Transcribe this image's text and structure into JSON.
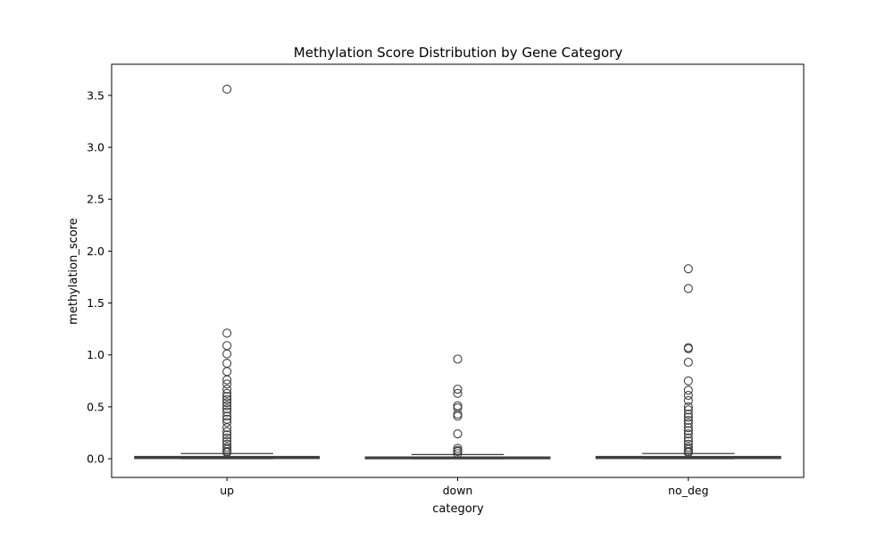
{
  "chart_data": {
    "type": "box",
    "title": "Methylation Score Distribution by Gene Category",
    "xlabel": "category",
    "ylabel": "methylation_score",
    "categories": [
      "up",
      "down",
      "no_deg"
    ],
    "ylim": [
      -0.18,
      3.8
    ],
    "yticks": [
      0.0,
      0.5,
      1.0,
      1.5,
      2.0,
      2.5,
      3.0,
      3.5
    ],
    "ytick_labels": [
      "0.0",
      "0.5",
      "1.0",
      "1.5",
      "2.0",
      "2.5",
      "3.0",
      "3.5"
    ],
    "grid": false,
    "legend": "none",
    "box_color": "#3a6b96",
    "line_color": "#3f3f3f",
    "boxes": [
      {
        "category": "up",
        "whisker_low": 0.0,
        "q1": 0.002,
        "median": 0.012,
        "q3": 0.022,
        "whisker_high": 0.05,
        "outliers": [
          3.56,
          1.21,
          1.09,
          1.01,
          0.92,
          0.84,
          0.76,
          0.72,
          0.67,
          0.63,
          0.6,
          0.57,
          0.54,
          0.51,
          0.48,
          0.45,
          0.41,
          0.38,
          0.35,
          0.3,
          0.26,
          0.23,
          0.2,
          0.17,
          0.14,
          0.11,
          0.09,
          0.07,
          0.06
        ]
      },
      {
        "category": "down",
        "whisker_low": 0.0,
        "q1": 0.002,
        "median": 0.008,
        "q3": 0.015,
        "whisker_high": 0.04,
        "outliers": [
          0.96,
          0.67,
          0.63,
          0.51,
          0.49,
          0.43,
          0.41,
          0.24,
          0.1,
          0.08,
          0.07,
          0.05
        ]
      },
      {
        "category": "no_deg",
        "whisker_low": 0.0,
        "q1": 0.002,
        "median": 0.012,
        "q3": 0.022,
        "whisker_high": 0.05,
        "outliers": [
          1.83,
          1.64,
          1.07,
          1.06,
          0.93,
          0.75,
          0.66,
          0.61,
          0.56,
          0.5,
          0.47,
          0.43,
          0.4,
          0.37,
          0.34,
          0.3,
          0.27,
          0.24,
          0.2,
          0.17,
          0.14,
          0.11,
          0.09,
          0.07,
          0.06
        ]
      }
    ]
  }
}
